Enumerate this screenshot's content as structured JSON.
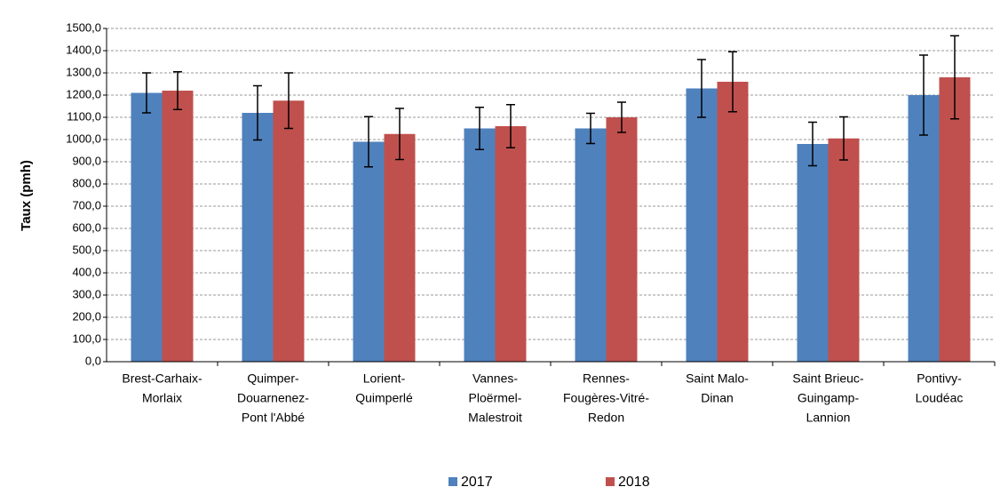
{
  "chart_data": {
    "type": "bar",
    "ylabel": "Taux (pmh)",
    "categories": [
      [
        "Brest-Carhaix-",
        "Morlaix"
      ],
      [
        "Quimper-",
        "Douarnenez-",
        "Pont l'Abbé"
      ],
      [
        "Lorient-",
        "Quimperlé"
      ],
      [
        "Vannes-",
        "Ploërmel-",
        "Malestroit"
      ],
      [
        "Rennes-",
        "Fougères-Vitré-",
        "Redon"
      ],
      [
        "Saint Malo-",
        "Dinan"
      ],
      [
        "Saint Brieuc-",
        "Guingamp-",
        "Lannion"
      ],
      [
        "Pontivy-",
        "Loudéac"
      ]
    ],
    "series": [
      {
        "name": "2017",
        "color": "#4f81bd",
        "values": [
          1210,
          1120,
          990,
          1050,
          1050,
          1230,
          980,
          1200
        ],
        "errors": [
          90,
          122,
          113,
          95,
          68,
          130,
          98,
          180
        ]
      },
      {
        "name": "2018",
        "color": "#c0504d",
        "values": [
          1220,
          1175,
          1025,
          1060,
          1100,
          1260,
          1005,
          1280
        ],
        "errors": [
          85,
          125,
          115,
          97,
          68,
          135,
          97,
          187
        ]
      }
    ],
    "ylim": [
      0,
      1500
    ],
    "yticks": [
      {
        "value": 0,
        "label": "0,0"
      },
      {
        "value": 100,
        "label": "100,0"
      },
      {
        "value": 200,
        "label": "200,0"
      },
      {
        "value": 300,
        "label": "300,0"
      },
      {
        "value": 400,
        "label": "400,0"
      },
      {
        "value": 500,
        "label": "500,0"
      },
      {
        "value": 600,
        "label": "600,0"
      },
      {
        "value": 700,
        "label": "700,0"
      },
      {
        "value": 800,
        "label": "800,0"
      },
      {
        "value": 900,
        "label": "900,0"
      },
      {
        "value": 1000,
        "label": "1000,0"
      },
      {
        "value": 1100,
        "label": "1100,0"
      },
      {
        "value": 1200,
        "label": "1200,0"
      },
      {
        "value": 1300,
        "label": "1300,0"
      },
      {
        "value": 1400,
        "label": "1400,0"
      },
      {
        "value": 1500,
        "label": "1500,0"
      }
    ],
    "grid": true,
    "legend": "bottom"
  }
}
